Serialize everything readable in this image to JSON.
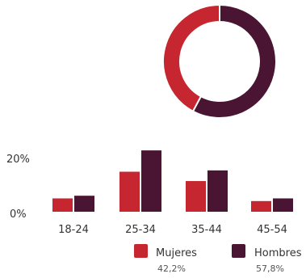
{
  "colors": {
    "mujeres": "#c6262f",
    "hombres": "#4a1532"
  },
  "chart_data": [
    {
      "type": "pie",
      "title": "",
      "donut": true,
      "slices": [
        {
          "name": "Mujeres",
          "value": 42.2,
          "color": "#c6262f"
        },
        {
          "name": "Hombres",
          "value": 57.8,
          "color": "#4a1532"
        }
      ]
    },
    {
      "type": "bar",
      "title": "",
      "xlabel": "",
      "ylabel": "",
      "categories": [
        "18-24",
        "25-34",
        "35-44",
        "45-54"
      ],
      "series": [
        {
          "name": "Mujeres",
          "values": [
            5,
            15,
            11.5,
            4
          ],
          "color": "#c6262f"
        },
        {
          "name": "Hombres",
          "values": [
            6,
            23,
            15.5,
            5
          ],
          "color": "#4a1532"
        }
      ],
      "ylim": [
        0,
        30
      ],
      "yticks": [
        {
          "value": 0,
          "label": "0%"
        },
        {
          "value": 20,
          "label": "20%"
        }
      ],
      "grid": false,
      "legend": {
        "position": "bottom-right",
        "entries": [
          {
            "name": "Mujeres",
            "pct": "42,2%",
            "color": "#c6262f"
          },
          {
            "name": "Hombres",
            "pct": "57,8%",
            "color": "#4a1532"
          }
        ]
      }
    }
  ]
}
